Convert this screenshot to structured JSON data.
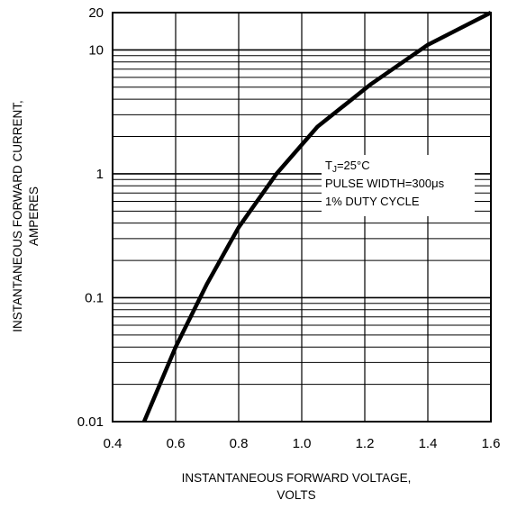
{
  "chart_data": {
    "type": "line",
    "xlabel_lines": [
      "INSTANTANEOUS FORWARD VOLTAGE,",
      "VOLTS"
    ],
    "ylabel_lines": [
      "INSTANTANEOUS FORWARD CURRENT,",
      "AMPERES"
    ],
    "xlim": [
      0.4,
      1.6
    ],
    "ylim": [
      0.01,
      20
    ],
    "y_scale": "log",
    "x_ticks": [
      "0.4",
      "0.6",
      "0.8",
      "1.0",
      "1.2",
      "1.4",
      "1.6"
    ],
    "y_ticks": [
      "0.01",
      "0.1",
      "1",
      "10",
      "20"
    ],
    "grid": true,
    "series": [
      {
        "x": [
          0.5,
          0.6,
          0.7,
          0.8,
          0.92,
          1.05,
          1.22,
          1.4,
          1.6
        ],
        "y": [
          0.01,
          0.04,
          0.13,
          0.37,
          1.0,
          2.4,
          5.3,
          11.0,
          20.0
        ]
      }
    ],
    "annotation": {
      "tj_prefix": "T",
      "tj_subscript": "J",
      "tj_value": "=25°C",
      "line2": "PULSE WIDTH=300μs",
      "line3": "1% DUTY CYCLE"
    }
  }
}
